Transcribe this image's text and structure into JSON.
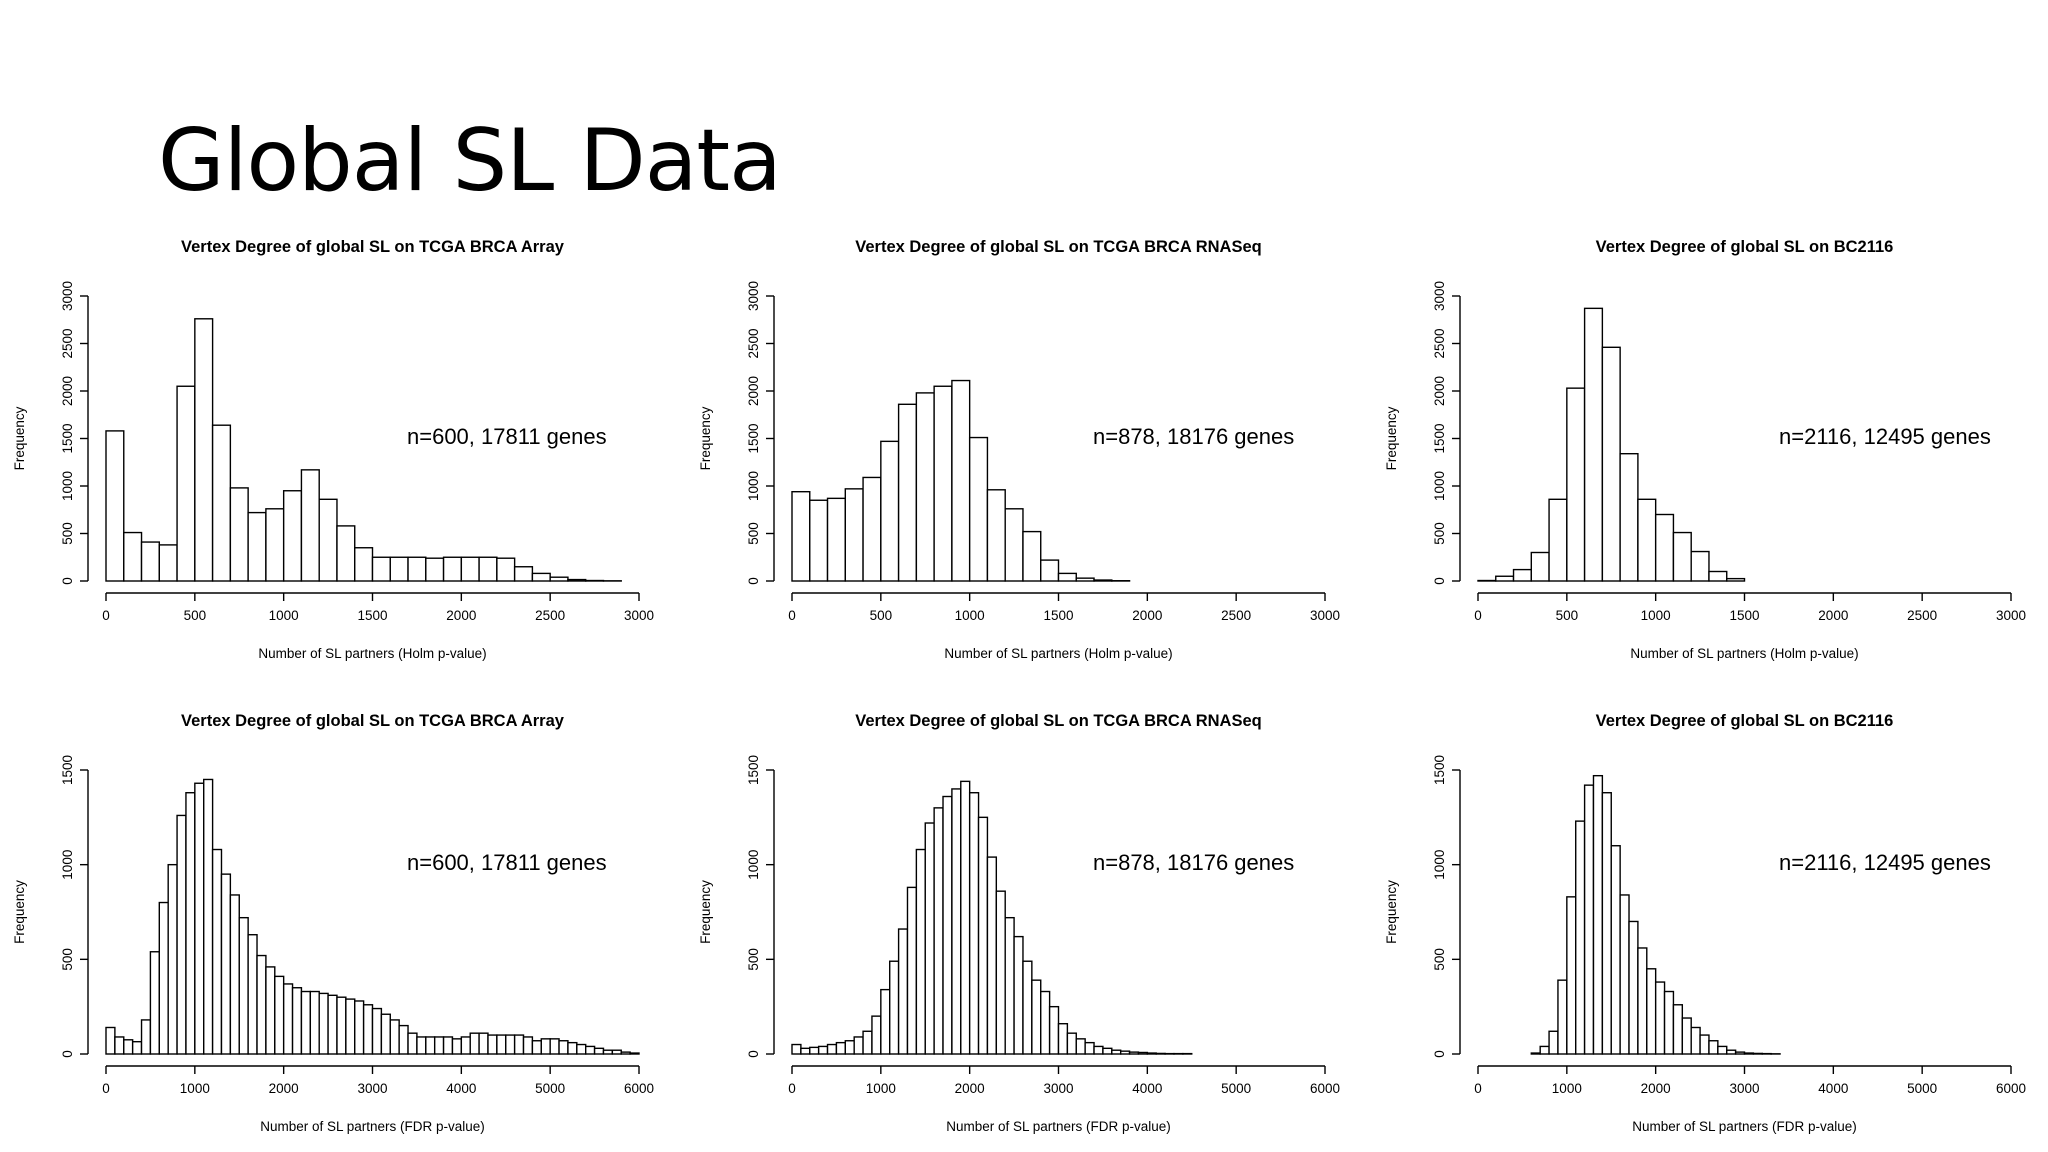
{
  "slide": {
    "title": "Global SL Data"
  },
  "chart_data": [
    {
      "type": "bar",
      "title": "Vertex Degree of global SL on TCGA BRCA Array",
      "xlabel": "Number of SL partners (Holm p-value)",
      "ylabel": "Frequency",
      "annotation": "n=600, 17811 genes",
      "xlim": [
        0,
        3000
      ],
      "ylim": [
        0,
        3000
      ],
      "x_ticks": [
        0,
        500,
        1000,
        1500,
        2000,
        2500,
        3000
      ],
      "y_ticks": [
        0,
        500,
        1000,
        1500,
        2000,
        2500,
        3000
      ],
      "bin_width": 100,
      "bin_start": 0,
      "values": [
        1580,
        510,
        410,
        380,
        2050,
        2760,
        1640,
        980,
        720,
        760,
        950,
        1170,
        860,
        580,
        350,
        250,
        250,
        250,
        240,
        250,
        250,
        250,
        240,
        150,
        80,
        40,
        15,
        5,
        2
      ]
    },
    {
      "type": "bar",
      "title": "Vertex Degree of global SL on TCGA BRCA RNASeq",
      "xlabel": "Number of SL partners (Holm p-value)",
      "ylabel": "Frequency",
      "annotation": "n=878, 18176 genes",
      "xlim": [
        0,
        3000
      ],
      "ylim": [
        0,
        3000
      ],
      "x_ticks": [
        0,
        500,
        1000,
        1500,
        2000,
        2500,
        3000
      ],
      "y_ticks": [
        0,
        500,
        1000,
        1500,
        2000,
        2500,
        3000
      ],
      "bin_width": 100,
      "bin_start": 0,
      "values": [
        940,
        850,
        870,
        970,
        1090,
        1470,
        1860,
        1980,
        2050,
        2110,
        1510,
        960,
        760,
        520,
        220,
        80,
        30,
        10,
        3
      ]
    },
    {
      "type": "bar",
      "title": "Vertex Degree of global SL on BC2116",
      "xlabel": "Number of SL partners (Holm p-value)",
      "ylabel": "Frequency",
      "annotation": "n=2116, 12495 genes",
      "xlim": [
        0,
        3000
      ],
      "ylim": [
        0,
        3000
      ],
      "x_ticks": [
        0,
        500,
        1000,
        1500,
        2000,
        2500,
        3000
      ],
      "y_ticks": [
        0,
        500,
        1000,
        1500,
        2000,
        2500,
        3000
      ],
      "bin_width": 100,
      "bin_start": 0,
      "values": [
        5,
        50,
        120,
        300,
        860,
        2030,
        2870,
        2460,
        1340,
        860,
        700,
        510,
        310,
        100,
        25
      ]
    },
    {
      "type": "bar",
      "title": "Vertex Degree of global SL on TCGA BRCA Array",
      "xlabel": "Number of SL partners (FDR p-value)",
      "ylabel": "Frequency",
      "annotation": "n=600, 17811 genes",
      "xlim": [
        0,
        6000
      ],
      "ylim": [
        0,
        1500
      ],
      "x_ticks": [
        0,
        1000,
        2000,
        3000,
        4000,
        5000,
        6000
      ],
      "y_ticks": [
        0,
        500,
        1000,
        1500
      ],
      "bin_width": 100,
      "bin_start": 0,
      "values": [
        140,
        90,
        75,
        65,
        180,
        540,
        800,
        1000,
        1260,
        1380,
        1430,
        1450,
        1080,
        950,
        840,
        720,
        630,
        520,
        460,
        410,
        370,
        350,
        330,
        330,
        320,
        310,
        300,
        290,
        280,
        260,
        240,
        210,
        180,
        150,
        110,
        90,
        90,
        90,
        90,
        80,
        90,
        110,
        110,
        100,
        100,
        100,
        100,
        90,
        70,
        80,
        80,
        70,
        60,
        50,
        40,
        30,
        20,
        20,
        10,
        5
      ]
    },
    {
      "type": "bar",
      "title": "Vertex Degree of global SL on TCGA BRCA RNASeq",
      "xlabel": "Number of SL partners (FDR p-value)",
      "ylabel": "Frequency",
      "annotation": "n=878, 18176 genes",
      "xlim": [
        0,
        6000
      ],
      "ylim": [
        0,
        1500
      ],
      "x_ticks": [
        0,
        1000,
        2000,
        3000,
        4000,
        5000,
        6000
      ],
      "y_ticks": [
        0,
        500,
        1000,
        1500
      ],
      "bin_width": 100,
      "bin_start": 0,
      "values": [
        50,
        30,
        35,
        40,
        50,
        60,
        70,
        90,
        120,
        200,
        340,
        490,
        660,
        880,
        1080,
        1220,
        1300,
        1360,
        1400,
        1440,
        1380,
        1250,
        1040,
        860,
        720,
        620,
        490,
        390,
        330,
        250,
        160,
        110,
        80,
        60,
        40,
        30,
        20,
        15,
        10,
        8,
        5,
        3,
        2,
        2,
        2
      ]
    },
    {
      "type": "bar",
      "title": "Vertex Degree of global SL on BC2116",
      "xlabel": "Number of SL partners (FDR p-value)",
      "ylabel": "Frequency",
      "annotation": "n=2116, 12495 genes",
      "xlim": [
        0,
        6000
      ],
      "ylim": [
        0,
        1500
      ],
      "x_ticks": [
        0,
        1000,
        2000,
        3000,
        4000,
        5000,
        6000
      ],
      "y_ticks": [
        0,
        500,
        1000,
        1500
      ],
      "bin_width": 100,
      "bin_start": 600,
      "values": [
        5,
        40,
        120,
        390,
        830,
        1230,
        1420,
        1470,
        1380,
        1100,
        840,
        700,
        560,
        450,
        380,
        330,
        260,
        190,
        140,
        100,
        70,
        40,
        20,
        10,
        5,
        3,
        2,
        1
      ]
    }
  ]
}
